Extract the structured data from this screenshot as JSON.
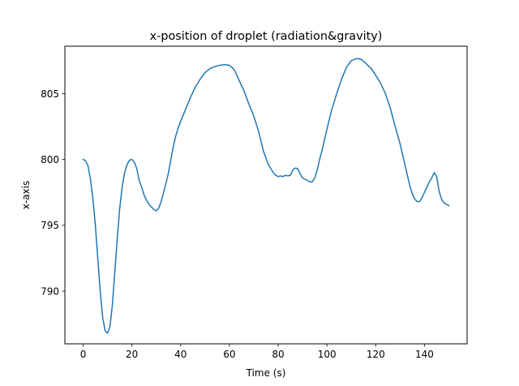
{
  "chart_data": {
    "type": "line",
    "title": "x-position of droplet (radiation&gravity)",
    "xlabel": "Time (s)",
    "ylabel": "x-axis",
    "xlim": [
      -7.5,
      157.5
    ],
    "ylim": [
      786.0,
      808.6
    ],
    "xticks": [
      0,
      20,
      40,
      60,
      80,
      100,
      120,
      140
    ],
    "yticks": [
      790,
      795,
      800,
      805
    ],
    "grid": false,
    "legend": "none",
    "series": [
      {
        "color": "#1f77b4",
        "x": [
          0,
          1,
          2,
          3,
          4,
          5,
          6,
          7,
          8,
          9,
          10,
          11,
          12,
          13,
          14,
          15,
          16,
          17,
          18,
          19,
          20,
          21,
          22,
          23,
          24,
          25,
          26,
          27,
          28,
          29,
          30,
          31,
          32,
          33,
          34,
          35,
          36,
          37,
          38,
          39,
          40,
          42,
          44,
          46,
          48,
          50,
          52,
          54,
          56,
          58,
          60,
          61,
          62,
          63,
          64,
          66,
          68,
          70,
          72,
          74,
          76,
          78,
          79,
          80,
          81,
          82,
          83,
          84,
          85,
          86,
          87,
          88,
          89,
          90,
          91,
          92,
          93,
          94,
          95,
          96,
          97,
          98,
          99,
          100,
          102,
          104,
          106,
          108,
          110,
          112,
          113,
          114,
          115,
          116,
          117,
          118,
          120,
          122,
          124,
          126,
          128,
          130,
          132,
          134,
          135,
          136,
          137,
          138,
          139,
          140,
          141,
          142,
          143,
          144,
          145,
          146,
          147,
          148,
          149,
          150
        ],
        "y": [
          800.0,
          799.9,
          799.5,
          798.5,
          797.0,
          795.0,
          792.5,
          790.0,
          788.0,
          787.0,
          786.8,
          787.3,
          789.0,
          791.5,
          794.0,
          796.3,
          797.9,
          799.0,
          799.6,
          799.95,
          800.0,
          799.8,
          799.3,
          798.4,
          797.9,
          797.3,
          796.9,
          796.6,
          796.4,
          796.2,
          796.1,
          796.3,
          796.8,
          797.5,
          798.2,
          799.0,
          800.0,
          801.0,
          801.8,
          802.4,
          802.9,
          803.8,
          804.7,
          805.5,
          806.1,
          806.6,
          806.9,
          807.05,
          807.15,
          807.2,
          807.15,
          807.0,
          806.8,
          806.4,
          806.0,
          805.2,
          804.2,
          803.3,
          802.1,
          800.6,
          799.6,
          799.0,
          798.8,
          798.7,
          798.75,
          798.7,
          798.8,
          798.75,
          798.8,
          799.2,
          799.35,
          799.3,
          798.9,
          798.6,
          798.5,
          798.4,
          798.3,
          798.3,
          798.6,
          799.2,
          800.0,
          800.7,
          801.5,
          802.3,
          803.8,
          805.0,
          806.1,
          807.0,
          807.5,
          807.65,
          807.65,
          807.6,
          807.45,
          807.3,
          807.1,
          806.95,
          806.4,
          805.8,
          805.0,
          803.9,
          802.5,
          801.2,
          799.6,
          798.0,
          797.4,
          797.0,
          796.8,
          796.8,
          797.1,
          797.5,
          797.9,
          798.3,
          798.6,
          799.0,
          798.7,
          797.6,
          797.0,
          796.7,
          796.6,
          796.5
        ]
      }
    ]
  }
}
